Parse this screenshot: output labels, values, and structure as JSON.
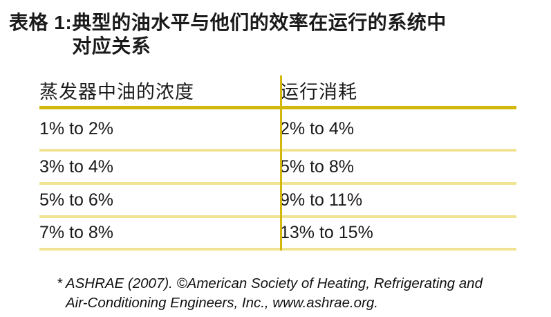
{
  "page": {
    "background": "#ffffff",
    "text_color": "#1a1a1a"
  },
  "title": {
    "label": "表格 1:",
    "line1": "典型的油水平与他们的效率在运行的系统中",
    "line2": "对应关系"
  },
  "table": {
    "columns": [
      "蒸发器中油的浓度",
      "运行消耗"
    ],
    "rows": [
      [
        "1% to 2%",
        "2% to 4%"
      ],
      [
        "3% to 4%",
        "5% to 8%"
      ],
      [
        "5% to 6%",
        "9% to 11%"
      ],
      [
        "7% to 8%",
        "13% to 15%"
      ]
    ],
    "colors": {
      "dark_gold_rule": "#D3B70A",
      "light_gold_rule": "#F0E392"
    }
  },
  "footnote": {
    "line1": "* ASHRAE (2007). ©American Society of Heating, Refrigerating and",
    "line2": "Air-Conditioning Engineers, Inc., www.ashrae.org."
  }
}
